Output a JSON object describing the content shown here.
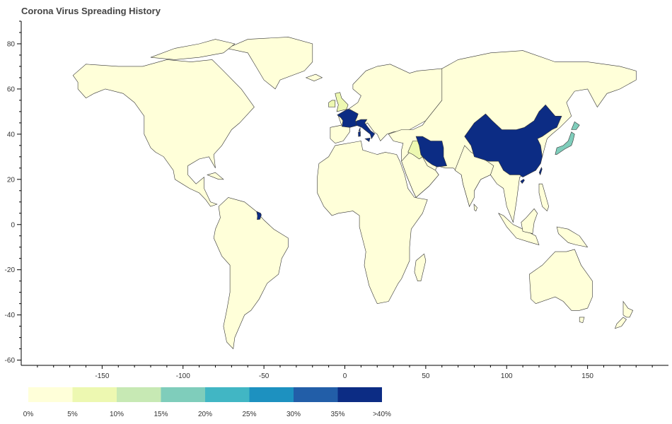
{
  "title": "Corona Virus Spreading History",
  "colors": {
    "background": "#ffffff",
    "scale": [
      "#ffffd9",
      "#edf8b1",
      "#c7e9b4",
      "#7fcdbb",
      "#41b6c4",
      "#1d91c0",
      "#225ea8",
      "#0c2c84"
    ]
  },
  "chart_data": {
    "type": "choropleth",
    "title": "Corona Virus Spreading History",
    "xlabel": "",
    "ylabel": "",
    "xlim": [
      -200,
      200
    ],
    "ylim": [
      -62,
      90
    ],
    "x_ticks": [
      -150,
      -100,
      -50,
      0,
      50,
      100,
      150
    ],
    "y_ticks": [
      80,
      60,
      40,
      20,
      0,
      -20,
      -40,
      -60
    ],
    "color_bins": [
      "0%",
      "5%",
      "10%",
      "15%",
      "20%",
      "25%",
      "30%",
      "35%",
      ">40%"
    ],
    "highlighted_regions": [
      {
        "region": "China",
        "bin": ">40%"
      },
      {
        "region": "Iran",
        "bin": ">40%"
      },
      {
        "region": "Italy",
        "bin": ">40%"
      },
      {
        "region": "France",
        "bin": ">40%"
      },
      {
        "region": "French Guiana",
        "bin": ">40%"
      },
      {
        "region": "Japan",
        "bin": "15%"
      },
      {
        "region": "United Kingdom",
        "bin": "5%"
      },
      {
        "region": "Iraq",
        "bin": "5%"
      }
    ]
  }
}
